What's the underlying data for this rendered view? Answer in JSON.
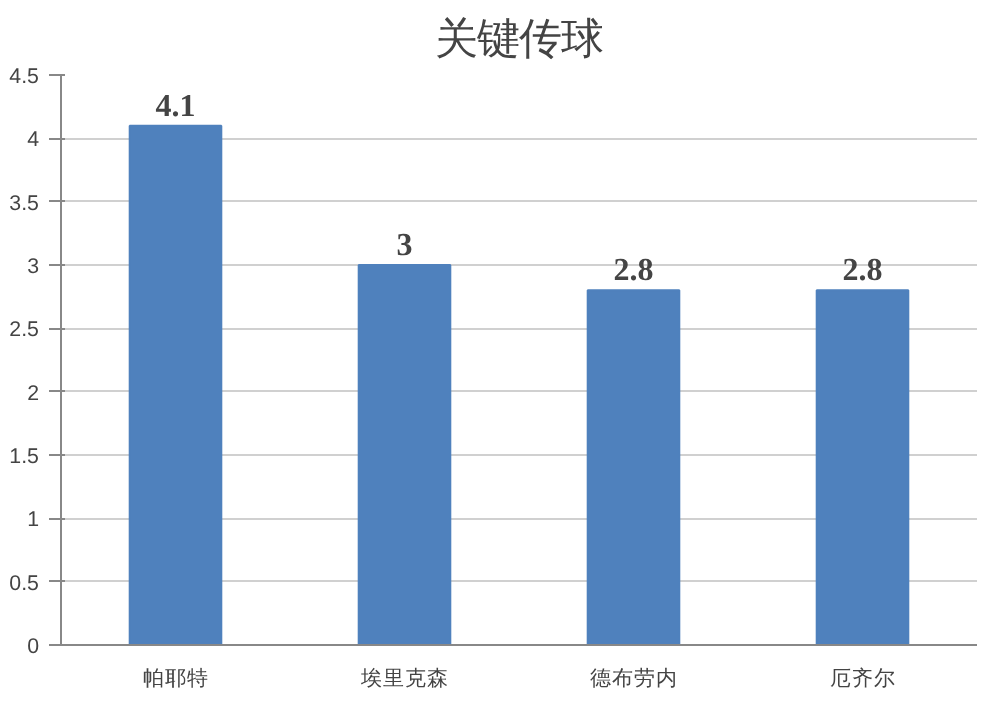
{
  "chart_data": {
    "type": "bar",
    "title": "关键传球",
    "categories": [
      "帕耶特",
      "埃里克森",
      "德布劳内",
      "厄齐尔"
    ],
    "values": [
      4.1,
      3,
      2.8,
      2.8
    ],
    "color": "#4f81bd",
    "ylim": [
      0,
      4.5
    ],
    "yticks": [
      0,
      0.5,
      1,
      1.5,
      2,
      2.5,
      3,
      3.5,
      4,
      4.5
    ],
    "grid": "y",
    "data_labels": true
  }
}
